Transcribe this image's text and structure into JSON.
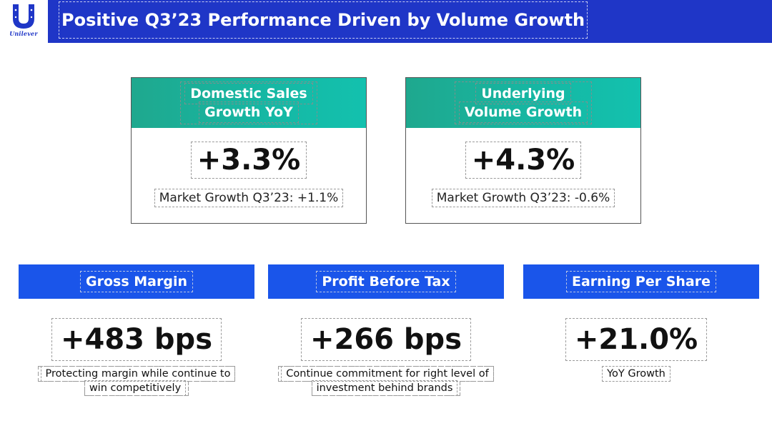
{
  "header": {
    "logo_text": "Unilever",
    "title": "Positive Q3’23 Performance Driven by Volume Growth"
  },
  "top_cards": [
    {
      "title_line1": "Domestic Sales",
      "title_line2": "Growth YoY",
      "value": "+3.3%",
      "subtext": "Market Growth Q3’23: +1.1%"
    },
    {
      "title_line1": "Underlying",
      "title_line2": "Volume Growth",
      "value": "+4.3%",
      "subtext": "Market Growth Q3’23: -0.6%"
    }
  ],
  "metrics": [
    {
      "label": "Gross Margin",
      "value": "+483 bps",
      "desc_line1": "Protecting margin while continue to",
      "desc_line2": "win competitively"
    },
    {
      "label": "Profit Before Tax",
      "value": "+266 bps",
      "desc_line1": "Continue commitment for right level of",
      "desc_line2": "investment behind brands"
    },
    {
      "label": "Earning Per Share",
      "value": "+21.0%",
      "desc_line1": "YoY Growth",
      "desc_line2": ""
    }
  ],
  "colors": {
    "brand_blue": "#1f36c7",
    "header_blue": "#1a55ea",
    "teal": "#16b7a3"
  }
}
